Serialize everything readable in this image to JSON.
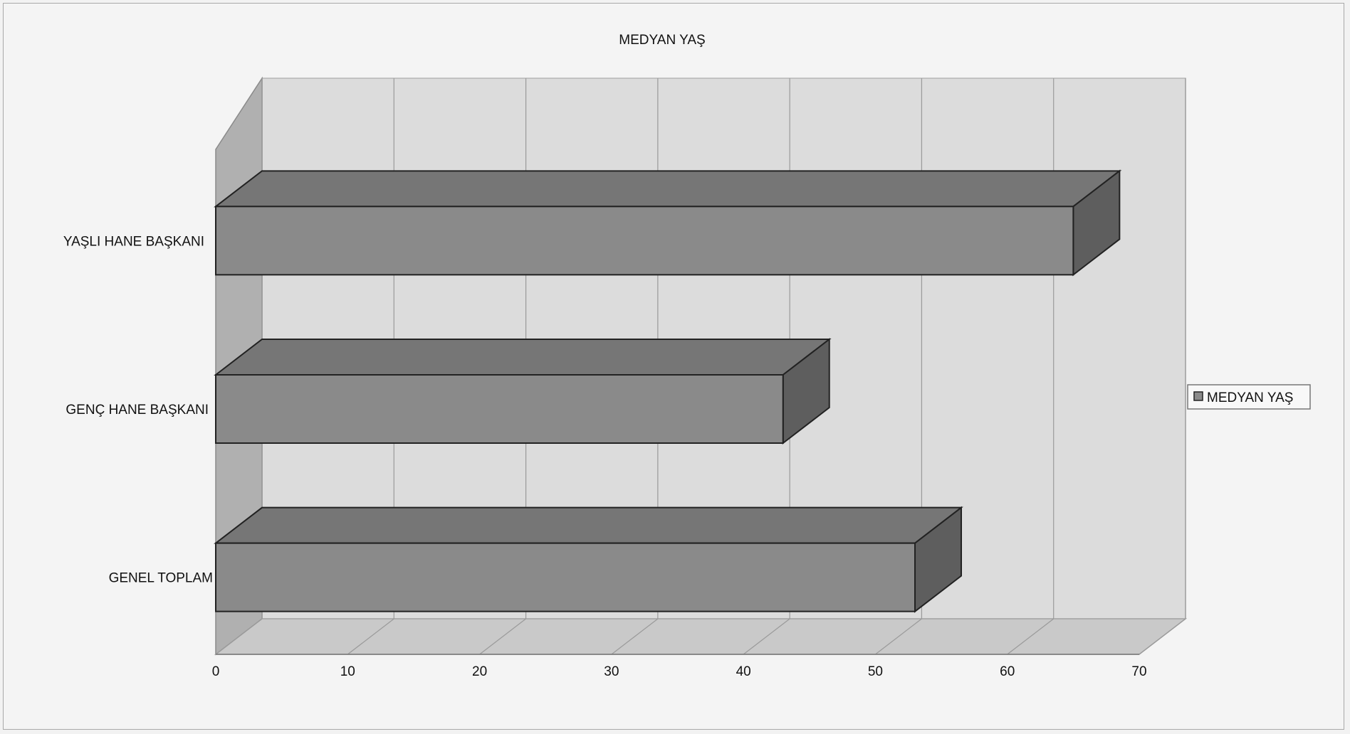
{
  "chart_data": {
    "type": "bar",
    "orientation": "horizontal",
    "style": "3d",
    "title": "MEDYAN YAŞ",
    "categories": [
      "YAŞLI HANE BAŞKANI",
      "GENÇ HANE BAŞKANI",
      "GENEL TOPLAM"
    ],
    "series": [
      {
        "name": "MEDYAN YAŞ",
        "values": [
          65,
          43,
          53
        ]
      }
    ],
    "xlim": [
      0,
      70
    ],
    "xticks": [
      0,
      10,
      20,
      30,
      40,
      50,
      60,
      70
    ],
    "grid": true,
    "legend": "right",
    "colors": {
      "bar_front": "#8a8a8a",
      "bar_top": "#767676",
      "bar_side": "#5e5e5e",
      "wall": "#dcdcdc",
      "floor": "#c9c9c9",
      "grid": "#9a9a9a",
      "outline": "#222222"
    }
  }
}
